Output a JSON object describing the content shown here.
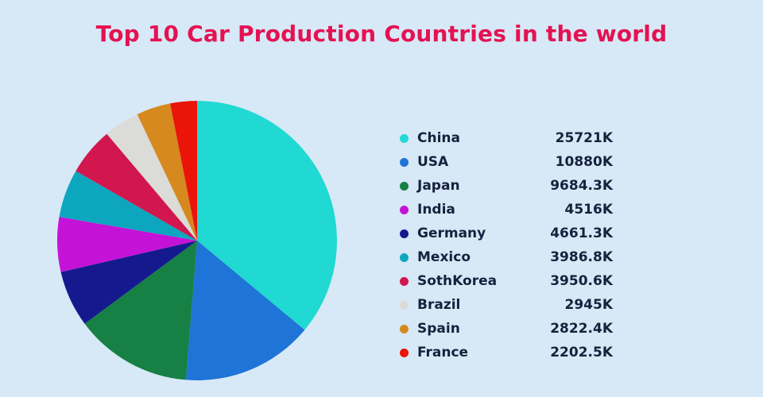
{
  "page": {
    "background_color": "#d7e8f6",
    "title_color": "#e41252",
    "text_color": "#16213e"
  },
  "chart_data": {
    "type": "pie",
    "title": "Top 10 Car Production Countries in the world",
    "unit": "K",
    "legend_position": "right",
    "slice_order": "descending-by-value-clockwise-from-top",
    "items": [
      {
        "label": "China",
        "value": 25721,
        "value_label": "25721K",
        "color": "#20d9d2"
      },
      {
        "label": "USA",
        "value": 10880,
        "value_label": "10880K",
        "color": "#1e74d7"
      },
      {
        "label": "Japan",
        "value": 9684.3,
        "value_label": "9684.3K",
        "color": "#178044"
      },
      {
        "label": "India",
        "value": 4516,
        "value_label": "4516K",
        "color": "#c413d6"
      },
      {
        "label": "Germany",
        "value": 4661.3,
        "value_label": "4661.3K",
        "color": "#141a8e"
      },
      {
        "label": "Mexico",
        "value": 3986.8,
        "value_label": "3986.8K",
        "color": "#0da6bf"
      },
      {
        "label": "SothKorea",
        "value": 3950.6,
        "value_label": "3950.6K",
        "color": "#d2164e"
      },
      {
        "label": "Brazil",
        "value": 2945,
        "value_label": "2945K",
        "color": "#dbdbd7"
      },
      {
        "label": "Spain",
        "value": 2822.4,
        "value_label": "2822.4K",
        "color": "#d5891f"
      },
      {
        "label": "France",
        "value": 2202.5,
        "value_label": "2202.5K",
        "color": "#ea1408"
      }
    ]
  }
}
